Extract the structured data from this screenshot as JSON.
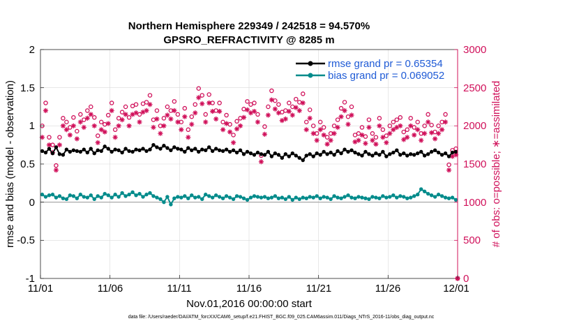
{
  "chart_data": {
    "type": "line",
    "title_line1": "Northern Hemisphere 229349 / 242518 = 94.570%",
    "title_line2": "GPSRO_REFRACTIVITY @ 8285 m",
    "xlabel": "Nov.01,2016 00:00:00 start",
    "ylabel_left": "rmse and bias (model - observation)",
    "ylabel_right": "# of obs: o=possible; ∗=assimilated",
    "x_ticks": [
      "11/01",
      "11/06",
      "11/11",
      "11/16",
      "11/21",
      "11/26",
      "12/01"
    ],
    "x_range_days": [
      0,
      30
    ],
    "ylim_left": [
      -1,
      2
    ],
    "ylim_right": [
      0,
      3000
    ],
    "y_ticks_left": [
      "2",
      "1.5",
      "1",
      "0.5",
      "0",
      "-0.5",
      "-1"
    ],
    "y_ticks_right": [
      "3000",
      "2500",
      "2000",
      "1500",
      "1000",
      "500",
      "0"
    ],
    "legend": {
      "location": "top-right",
      "rmse_label": "rmse grand pr = 0.65354",
      "bias_label": "bias grand pr = 0.069052"
    },
    "footer": "data file: /Users/raeder/DAI/ATM_forcXX/CAM6_setup/f.e21.FHIST_BGC.f09_025.CAM6assim.011/Diags_NTrS_2016-11/obs_diag_output.nc",
    "series": [
      {
        "name": "rmse",
        "color": "#000000",
        "x_days": [
          0.125,
          0.375,
          0.625,
          0.875,
          1.125,
          1.375,
          1.625,
          1.875,
          2.125,
          2.375,
          2.625,
          2.875,
          3.125,
          3.375,
          3.625,
          3.875,
          4.125,
          4.375,
          4.625,
          4.875,
          5.125,
          5.375,
          5.625,
          5.875,
          6.125,
          6.375,
          6.625,
          6.875,
          7.125,
          7.375,
          7.625,
          7.875,
          8.125,
          8.375,
          8.625,
          8.875,
          9.125,
          9.375,
          9.625,
          9.875,
          10.125,
          10.375,
          10.625,
          10.875,
          11.125,
          11.375,
          11.625,
          11.875,
          12.125,
          12.375,
          12.625,
          12.875,
          13.125,
          13.375,
          13.625,
          13.875,
          14.125,
          14.375,
          14.625,
          14.875,
          15.125,
          15.375,
          15.625,
          15.875,
          16.125,
          16.375,
          16.625,
          16.875,
          17.125,
          17.375,
          17.625,
          17.875,
          18.125,
          18.375,
          18.625,
          18.875,
          19.125,
          19.375,
          19.625,
          19.875,
          20.125,
          20.375,
          20.625,
          20.875,
          21.125,
          21.375,
          21.625,
          21.875,
          22.125,
          22.375,
          22.625,
          22.875,
          23.125,
          23.375,
          23.625,
          23.875,
          24.125,
          24.375,
          24.625,
          24.875,
          25.125,
          25.375,
          25.625,
          25.875,
          26.125,
          26.375,
          26.625,
          26.875,
          27.125,
          27.375,
          27.625,
          27.875,
          28.125,
          28.375,
          28.625,
          28.875,
          29.125,
          29.375,
          29.625,
          29.875
        ],
        "values": [
          0.67,
          0.65,
          0.7,
          0.64,
          0.72,
          0.63,
          0.62,
          0.69,
          0.66,
          0.68,
          0.67,
          0.66,
          0.69,
          0.65,
          0.7,
          0.64,
          0.68,
          0.67,
          0.73,
          0.7,
          0.66,
          0.69,
          0.68,
          0.65,
          0.7,
          0.67,
          0.66,
          0.69,
          0.68,
          0.7,
          0.67,
          0.69,
          0.75,
          0.72,
          0.7,
          0.74,
          0.71,
          0.68,
          0.72,
          0.7,
          0.69,
          0.66,
          0.71,
          0.68,
          0.7,
          0.66,
          0.69,
          0.68,
          0.72,
          0.67,
          0.7,
          0.68,
          0.67,
          0.69,
          0.66,
          0.68,
          0.65,
          0.68,
          0.63,
          0.66,
          0.64,
          0.62,
          0.65,
          0.63,
          0.62,
          0.66,
          0.6,
          0.64,
          0.62,
          0.58,
          0.63,
          0.6,
          0.64,
          0.61,
          0.58,
          0.55,
          0.61,
          0.63,
          0.6,
          0.64,
          0.62,
          0.66,
          0.63,
          0.65,
          0.62,
          0.67,
          0.64,
          0.69,
          0.66,
          0.68,
          0.65,
          0.63,
          0.61,
          0.66,
          0.63,
          0.61,
          0.64,
          0.62,
          0.66,
          0.6,
          0.63,
          0.65,
          0.68,
          0.62,
          0.64,
          0.61,
          0.63,
          0.62,
          0.64,
          0.66,
          0.61,
          0.63,
          0.66,
          0.68,
          0.65,
          0.62,
          0.64,
          0.6,
          0.65,
          0.66
        ]
      },
      {
        "name": "bias",
        "color": "#008b8b",
        "x_days": [
          0.125,
          0.375,
          0.625,
          0.875,
          1.125,
          1.375,
          1.625,
          1.875,
          2.125,
          2.375,
          2.625,
          2.875,
          3.125,
          3.375,
          3.625,
          3.875,
          4.125,
          4.375,
          4.625,
          4.875,
          5.125,
          5.375,
          5.625,
          5.875,
          6.125,
          6.375,
          6.625,
          6.875,
          7.125,
          7.375,
          7.625,
          7.875,
          8.125,
          8.375,
          8.625,
          8.875,
          9.125,
          9.375,
          9.625,
          9.875,
          10.125,
          10.375,
          10.625,
          10.875,
          11.125,
          11.375,
          11.625,
          11.875,
          12.125,
          12.375,
          12.625,
          12.875,
          13.125,
          13.375,
          13.625,
          13.875,
          14.125,
          14.375,
          14.625,
          14.875,
          15.125,
          15.375,
          15.625,
          15.875,
          16.125,
          16.375,
          16.625,
          16.875,
          17.125,
          17.375,
          17.625,
          17.875,
          18.125,
          18.375,
          18.625,
          18.875,
          19.125,
          19.375,
          19.625,
          19.875,
          20.125,
          20.375,
          20.625,
          20.875,
          21.125,
          21.375,
          21.625,
          21.875,
          22.125,
          22.375,
          22.625,
          22.875,
          23.125,
          23.375,
          23.625,
          23.875,
          24.125,
          24.375,
          24.625,
          24.875,
          25.125,
          25.375,
          25.625,
          25.875,
          26.125,
          26.375,
          26.625,
          26.875,
          27.125,
          27.375,
          27.625,
          27.875,
          28.125,
          28.375,
          28.625,
          28.875,
          29.125,
          29.375,
          29.625,
          29.875
        ],
        "values": [
          0.1,
          0.07,
          0.09,
          0.1,
          0.06,
          0.08,
          0.05,
          0.04,
          0.09,
          0.08,
          0.05,
          0.1,
          0.07,
          0.06,
          0.09,
          0.04,
          0.08,
          0.06,
          0.11,
          0.09,
          0.06,
          0.1,
          0.07,
          0.12,
          0.08,
          0.1,
          0.13,
          0.09,
          0.11,
          0.07,
          0.1,
          0.12,
          0.08,
          0.06,
          0.04,
          0.0,
          0.07,
          -0.03,
          0.05,
          0.07,
          0.06,
          0.08,
          0.05,
          0.09,
          0.06,
          0.07,
          0.04,
          0.1,
          0.08,
          0.06,
          0.09,
          0.07,
          0.05,
          0.08,
          0.06,
          0.04,
          0.08,
          0.07,
          0.05,
          0.03,
          0.06,
          0.08,
          0.07,
          0.06,
          0.07,
          0.05,
          0.06,
          0.08,
          0.05,
          0.06,
          0.04,
          0.07,
          0.03,
          0.06,
          0.04,
          0.06,
          0.05,
          0.07,
          0.06,
          0.08,
          0.05,
          0.07,
          0.06,
          0.04,
          0.08,
          0.06,
          0.05,
          0.07,
          0.09,
          0.06,
          0.05,
          0.07,
          0.06,
          0.05,
          0.04,
          0.07,
          0.06,
          0.05,
          0.08,
          0.06,
          0.07,
          0.09,
          0.06,
          0.08,
          0.07,
          0.05,
          0.06,
          0.08,
          0.1,
          0.17,
          0.14,
          0.11,
          0.09,
          0.07,
          0.1,
          0.08,
          0.06,
          0.05,
          0.06,
          0.03
        ]
      },
      {
        "name": "possible",
        "color": "#d0105a",
        "marker": "circle",
        "x_days": [
          0.125,
          0.375,
          0.625,
          0.875,
          1.125,
          1.375,
          1.625,
          1.875,
          2.125,
          2.375,
          2.625,
          2.875,
          3.125,
          3.375,
          3.625,
          3.875,
          4.125,
          4.375,
          4.625,
          4.875,
          5.125,
          5.375,
          5.625,
          5.875,
          6.125,
          6.375,
          6.625,
          6.875,
          7.125,
          7.375,
          7.625,
          7.875,
          8.125,
          8.375,
          8.625,
          8.875,
          9.125,
          9.375,
          9.625,
          9.875,
          10.125,
          10.375,
          10.625,
          10.875,
          11.125,
          11.375,
          11.625,
          11.875,
          12.125,
          12.375,
          12.625,
          12.875,
          13.125,
          13.375,
          13.625,
          13.875,
          14.125,
          14.375,
          14.625,
          14.875,
          15.125,
          15.375,
          15.625,
          15.875,
          16.125,
          16.375,
          16.625,
          16.875,
          17.125,
          17.375,
          17.625,
          17.875,
          18.125,
          18.375,
          18.625,
          18.875,
          19.125,
          19.375,
          19.625,
          19.875,
          20.125,
          20.375,
          20.625,
          20.875,
          21.125,
          21.375,
          21.625,
          21.875,
          22.125,
          22.375,
          22.625,
          22.875,
          23.125,
          23.375,
          23.625,
          23.875,
          24.125,
          24.375,
          24.625,
          24.875,
          25.125,
          25.375,
          25.625,
          25.875,
          26.125,
          26.375,
          26.625,
          26.875,
          27.125,
          27.375,
          27.625,
          27.875,
          28.125,
          28.375,
          28.625,
          28.875,
          29.125,
          29.375,
          29.625,
          29.875,
          30.0
        ],
        "values": [
          2000,
          2300,
          1850,
          1750,
          1480,
          1850,
          2100,
          2050,
          1980,
          2110,
          1930,
          2150,
          2080,
          2200,
          2250,
          2110,
          1870,
          2050,
          2020,
          2140,
          2300,
          1950,
          2100,
          2180,
          2250,
          2110,
          2260,
          2280,
          2150,
          2290,
          2310,
          2400,
          2080,
          2200,
          2000,
          2100,
          2250,
          2200,
          2320,
          2150,
          2050,
          2230,
          1950,
          2120,
          2280,
          2490,
          2400,
          2150,
          2410,
          2300,
          2200,
          2300,
          2050,
          2140,
          2020,
          1880,
          2060,
          2100,
          2220,
          2320,
          2280,
          2300,
          2150,
          1610,
          1990,
          2250,
          2460,
          2330,
          2280,
          2180,
          2200,
          2300,
          2250,
          2350,
          2310,
          2420,
          2050,
          2210,
          2000,
          1900,
          2050,
          1980,
          1850,
          1900,
          2000,
          2080,
          2230,
          2310,
          2120,
          2250,
          1880,
          1900,
          1980,
          1860,
          2080,
          1900,
          1850,
          2100,
          1950,
          1870,
          2000,
          2050,
          2080,
          2110,
          1920,
          1950,
          2100,
          1980,
          2050,
          1900,
          2000,
          2150,
          2010,
          1920,
          2000,
          2050,
          2150,
          1490,
          1680,
          1700,
          0
        ]
      },
      {
        "name": "assimilated",
        "color": "#d0105a",
        "marker": "star",
        "x_days": [
          0.125,
          0.375,
          0.625,
          0.875,
          1.125,
          1.375,
          1.625,
          1.875,
          2.125,
          2.375,
          2.625,
          2.875,
          3.125,
          3.375,
          3.625,
          3.875,
          4.125,
          4.375,
          4.625,
          4.875,
          5.125,
          5.375,
          5.625,
          5.875,
          6.125,
          6.375,
          6.625,
          6.875,
          7.125,
          7.375,
          7.625,
          7.875,
          8.125,
          8.375,
          8.625,
          8.875,
          9.125,
          9.375,
          9.625,
          9.875,
          10.125,
          10.375,
          10.625,
          10.875,
          11.125,
          11.375,
          11.625,
          11.875,
          12.125,
          12.375,
          12.625,
          12.875,
          13.125,
          13.375,
          13.625,
          13.875,
          14.125,
          14.375,
          14.625,
          14.875,
          15.125,
          15.375,
          15.625,
          15.875,
          16.125,
          16.375,
          16.625,
          16.875,
          17.125,
          17.375,
          17.625,
          17.875,
          18.125,
          18.375,
          18.625,
          18.875,
          19.125,
          19.375,
          19.625,
          19.875,
          20.125,
          20.375,
          20.625,
          20.875,
          21.125,
          21.375,
          21.625,
          21.875,
          22.125,
          22.375,
          22.625,
          22.875,
          23.125,
          23.375,
          23.625,
          23.875,
          24.125,
          24.375,
          24.625,
          24.875,
          25.125,
          25.375,
          25.625,
          25.875,
          26.125,
          26.375,
          26.625,
          26.875,
          27.125,
          27.375,
          27.625,
          27.875,
          28.125,
          28.375,
          28.625,
          28.875,
          29.125,
          29.375,
          29.625,
          29.875,
          30.0
        ],
        "values": [
          1850,
          2200,
          1750,
          1650,
          1420,
          1750,
          2000,
          1950,
          1880,
          2000,
          1830,
          2050,
          1980,
          2100,
          2150,
          2000,
          1780,
          1950,
          1920,
          2030,
          2200,
          1850,
          2000,
          2080,
          2150,
          2000,
          2150,
          2170,
          2050,
          2180,
          2200,
          2280,
          1980,
          2090,
          1900,
          2000,
          2140,
          2090,
          2200,
          2050,
          1950,
          2120,
          1850,
          2020,
          2170,
          2370,
          2290,
          2050,
          2300,
          2190,
          2090,
          2190,
          1950,
          2030,
          1920,
          1780,
          1960,
          2000,
          2110,
          2210,
          2170,
          2190,
          2050,
          1530,
          1890,
          2140,
          2340,
          2220,
          2170,
          2070,
          2090,
          2190,
          2140,
          2240,
          2200,
          2300,
          1950,
          2100,
          1900,
          1810,
          1950,
          1880,
          1760,
          1810,
          1900,
          1980,
          2120,
          2200,
          2020,
          2140,
          1790,
          1810,
          1880,
          1770,
          1980,
          1810,
          1760,
          2000,
          1850,
          1780,
          1900,
          1950,
          1980,
          2000,
          1820,
          1850,
          2000,
          1880,
          1950,
          1810,
          1900,
          2050,
          1910,
          1830,
          1900,
          1950,
          2050,
          1420,
          1600,
          1620,
          0
        ]
      }
    ]
  }
}
